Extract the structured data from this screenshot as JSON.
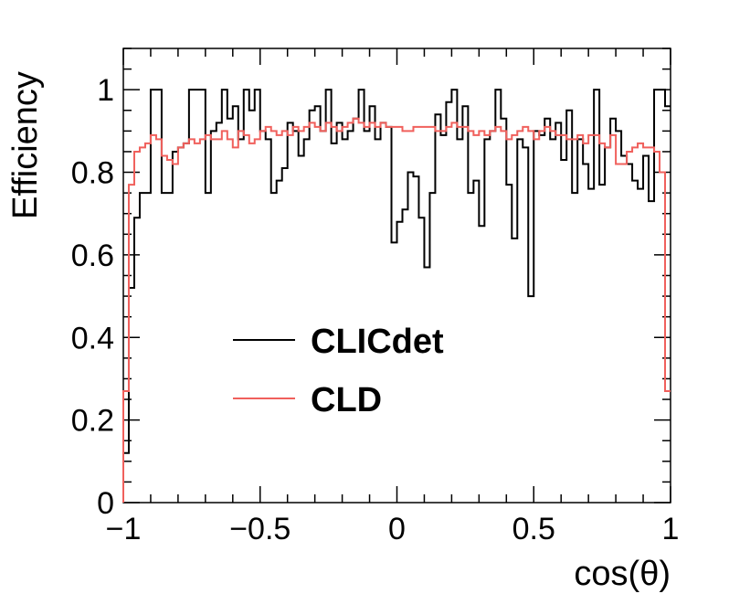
{
  "chart_data": {
    "type": "line",
    "xlabel": "cos(θ)",
    "ylabel": "Efficiency",
    "xlim": [
      -1,
      1
    ],
    "ylim": [
      0,
      1.1
    ],
    "x_ticks": [
      -1,
      -0.5,
      0,
      0.5,
      1
    ],
    "x_tick_labels": [
      "−1",
      "−0.5",
      "0",
      "0.5",
      "1"
    ],
    "y_ticks": [
      0,
      0.2,
      0.4,
      0.6,
      0.8,
      1
    ],
    "y_tick_labels": [
      "0",
      "0.2",
      "0.4",
      "0.6",
      "0.8",
      "1"
    ],
    "grid": false,
    "legend_position": "center-left",
    "bin_edges_start": -1,
    "bin_width": 0.02,
    "series": [
      {
        "name": "CLICdet",
        "color": "#000000",
        "values": [
          0.12,
          0.52,
          0.69,
          0.75,
          0.75,
          1.0,
          1.0,
          0.75,
          0.75,
          0.85,
          0.86,
          0.87,
          1.0,
          1.0,
          1.0,
          0.75,
          0.9,
          0.92,
          1.0,
          0.93,
          0.96,
          0.88,
          1.0,
          0.95,
          1.0,
          0.9,
          0.88,
          0.75,
          0.78,
          0.81,
          0.92,
          0.9,
          0.84,
          0.88,
          0.95,
          0.96,
          0.9,
          1.0,
          0.87,
          0.92,
          0.88,
          0.9,
          0.93,
          1.0,
          0.9,
          0.96,
          0.88,
          0.92,
          0.91,
          0.63,
          0.68,
          0.71,
          0.8,
          0.79,
          0.69,
          0.57,
          0.75,
          0.94,
          0.89,
          0.97,
          1.0,
          0.88,
          0.96,
          0.75,
          0.78,
          0.67,
          0.88,
          0.9,
          1.0,
          0.93,
          0.77,
          0.64,
          0.88,
          0.86,
          0.5,
          0.9,
          0.89,
          0.93,
          0.88,
          0.92,
          0.83,
          0.95,
          0.75,
          0.88,
          0.82,
          0.76,
          1.0,
          0.77,
          0.86,
          0.93,
          0.9,
          0.84,
          0.82,
          0.78,
          0.76,
          0.84,
          0.73,
          1.0,
          1.0,
          0.96
        ]
      },
      {
        "name": "CLD",
        "color": "#f0605c",
        "values": [
          0.27,
          0.77,
          0.85,
          0.86,
          0.87,
          0.89,
          0.88,
          0.84,
          0.83,
          0.82,
          0.86,
          0.87,
          0.88,
          0.87,
          0.88,
          0.89,
          0.88,
          0.88,
          0.9,
          0.88,
          0.86,
          0.9,
          0.89,
          0.87,
          0.88,
          0.9,
          0.91,
          0.9,
          0.89,
          0.9,
          0.89,
          0.91,
          0.9,
          0.91,
          0.92,
          0.91,
          0.9,
          0.92,
          0.91,
          0.9,
          0.91,
          0.92,
          0.93,
          0.92,
          0.91,
          0.92,
          0.91,
          0.92,
          0.91,
          0.91,
          0.91,
          0.9,
          0.9,
          0.91,
          0.91,
          0.91,
          0.91,
          0.9,
          0.9,
          0.91,
          0.92,
          0.91,
          0.91,
          0.9,
          0.89,
          0.9,
          0.89,
          0.9,
          0.91,
          0.9,
          0.88,
          0.89,
          0.9,
          0.91,
          0.9,
          0.88,
          0.9,
          0.91,
          0.9,
          0.89,
          0.89,
          0.88,
          0.88,
          0.89,
          0.87,
          0.89,
          0.89,
          0.87,
          0.86,
          0.89,
          0.82,
          0.82,
          0.85,
          0.86,
          0.87,
          0.86,
          0.86,
          0.85,
          0.8,
          0.27
        ]
      }
    ]
  }
}
